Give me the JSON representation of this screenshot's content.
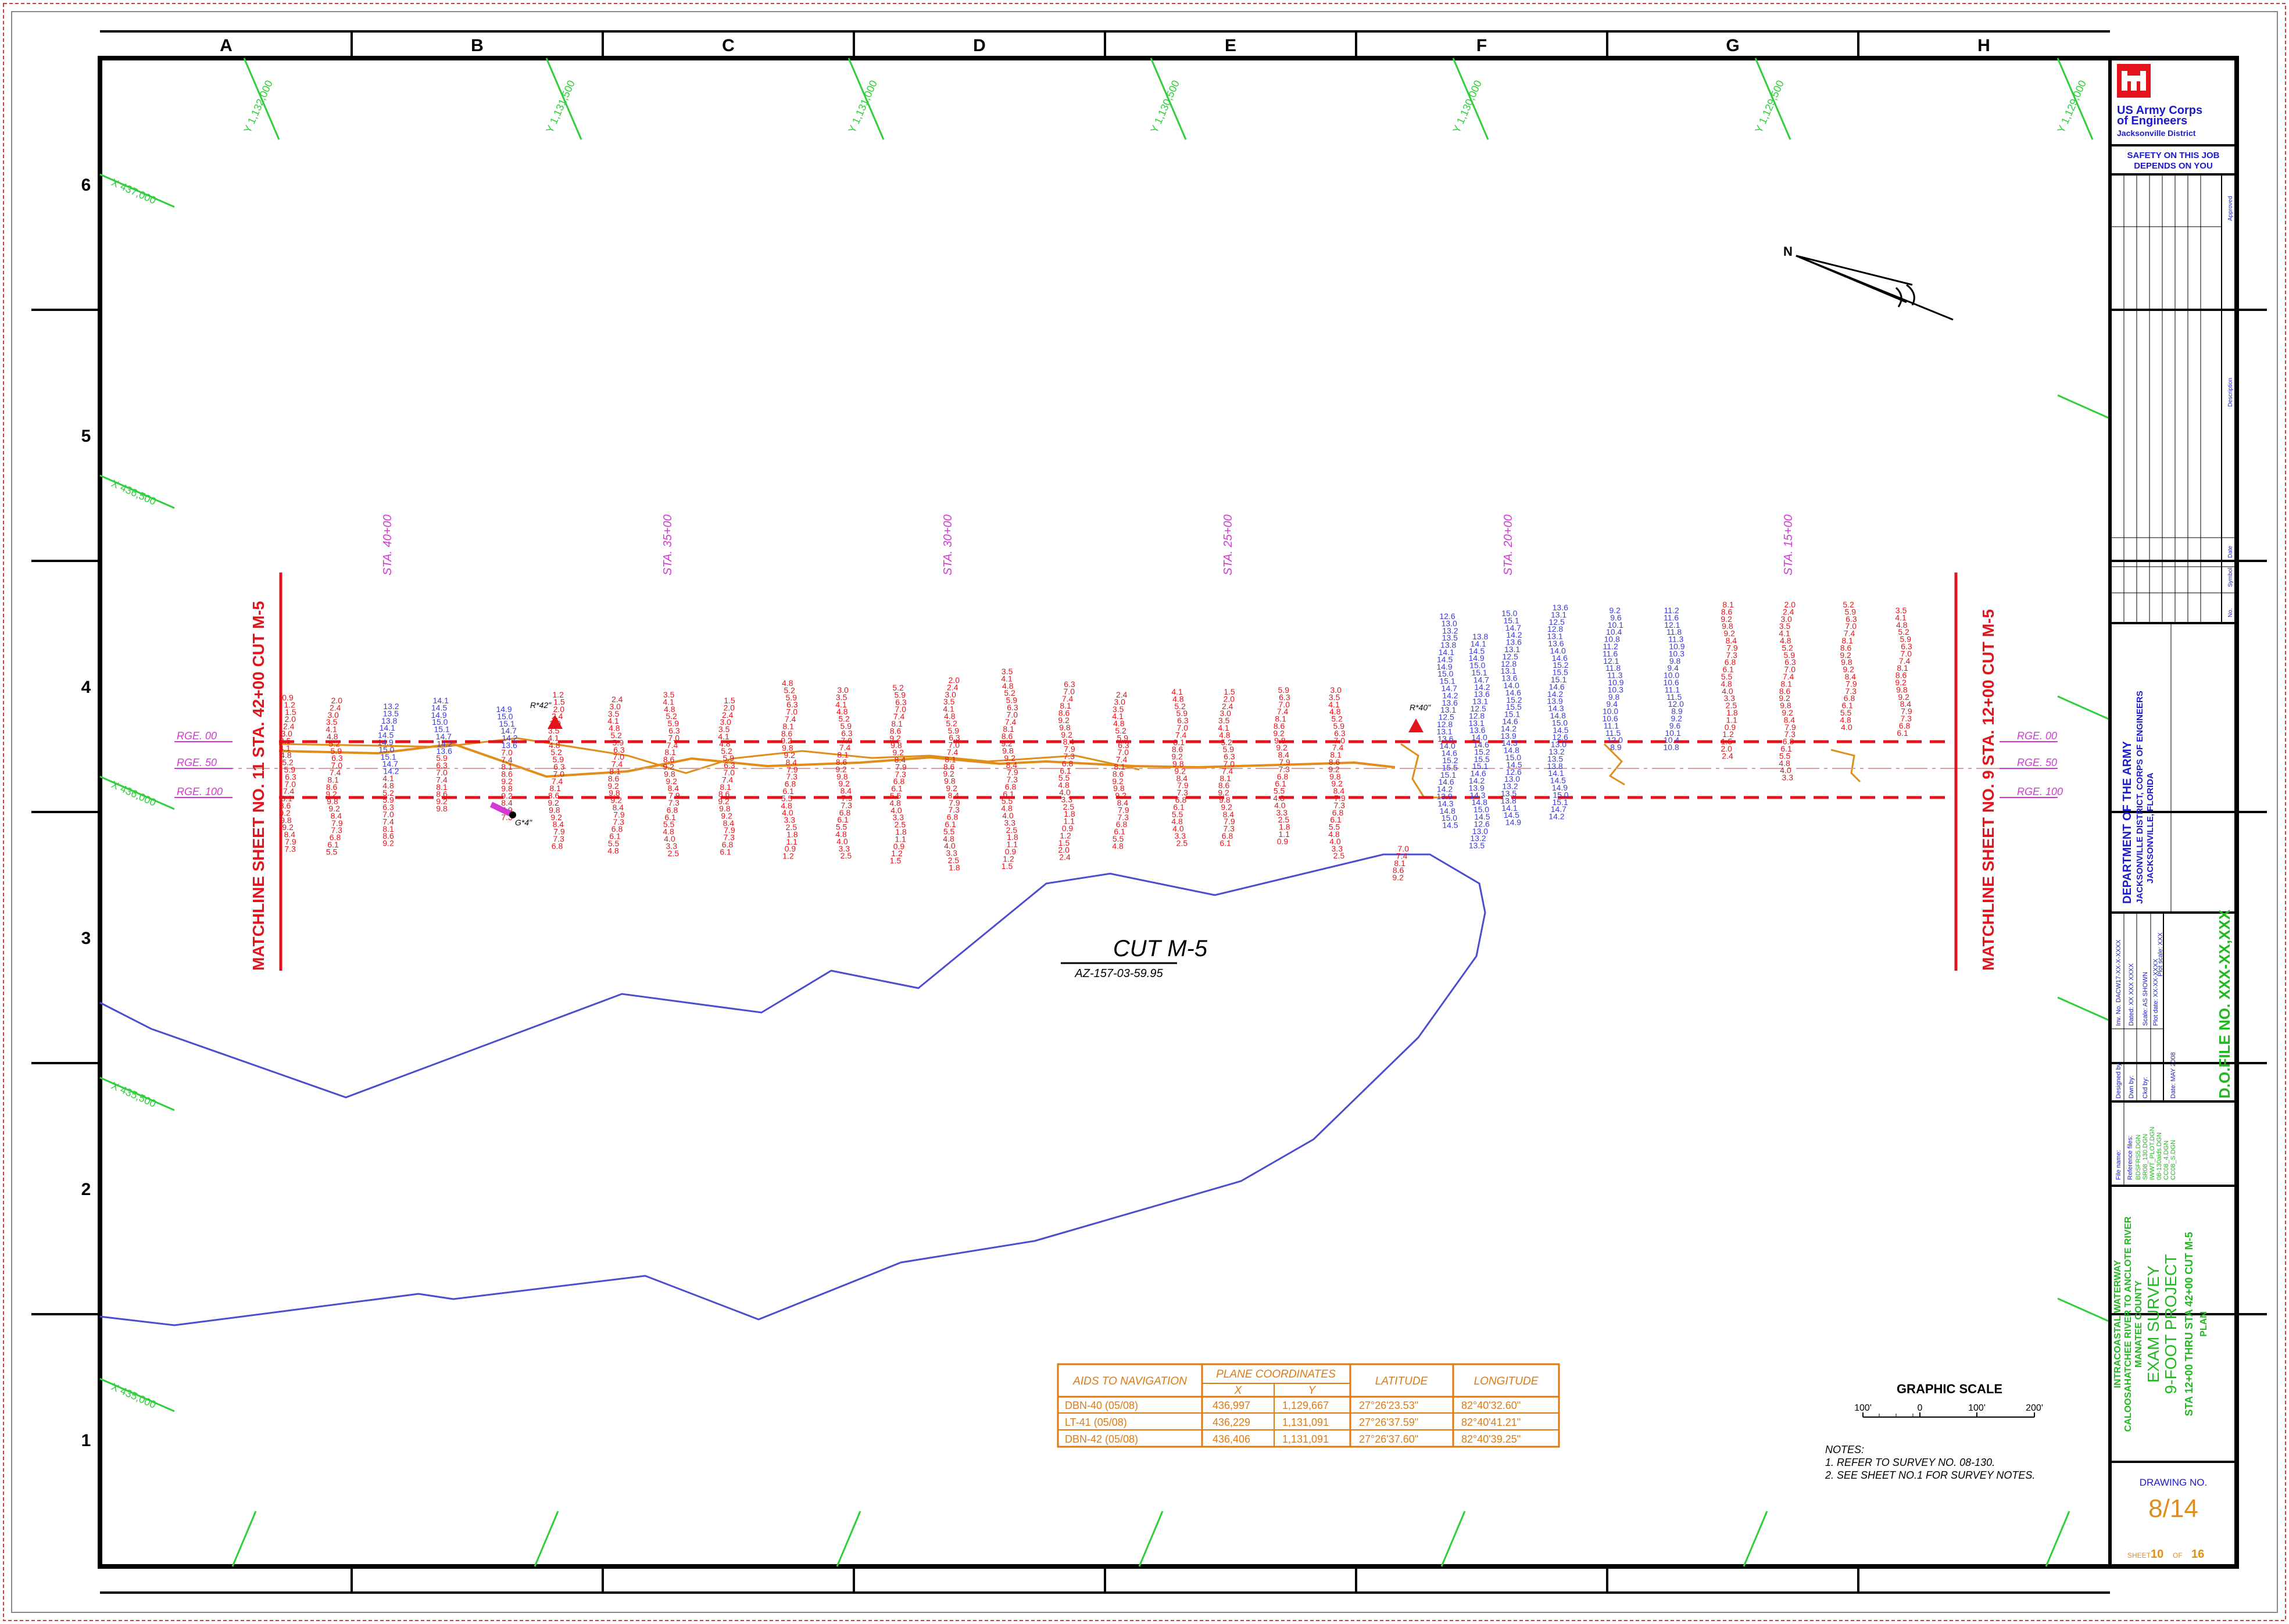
{
  "grid": {
    "columns": [
      "A",
      "B",
      "C",
      "D",
      "E",
      "F",
      "G",
      "H"
    ],
    "rows": [
      "6",
      "5",
      "4",
      "3",
      "2",
      "1"
    ]
  },
  "coords": {
    "y_labels": [
      "Y 1,132,000",
      "Y 1,131,500",
      "Y 1,131,000",
      "Y 1,130,500",
      "Y 1,130,000",
      "Y 1,129,500",
      "Y 1,129,000"
    ],
    "x_labels": [
      "X 437,000",
      "X 436,500",
      "X 436,000",
      "X 435,500",
      "X 435,000"
    ]
  },
  "stations": [
    "STA. 40+00",
    "STA. 35+00",
    "STA. 30+00",
    "STA. 25+00",
    "STA. 20+00",
    "STA. 15+00"
  ],
  "ranges": {
    "left": [
      "RGE. 00",
      "RGE. 50",
      "RGE. 100"
    ],
    "right": [
      "RGE. 00",
      "RGE. 50",
      "RGE. 100"
    ]
  },
  "matchlines": {
    "left": "MATCHLINE SHEET NO. 11 STA. 42+00 CUT M-5",
    "right": "MATCHLINE SHEET NO. 9 STA. 12+00 CUT M-5"
  },
  "annotations": {
    "cut_title": "CUT M-5",
    "cut_subtitle": "AZ-157-03-59.95",
    "marker1": "R*42\"",
    "marker2": "R*40\"",
    "marker3": "G*4\""
  },
  "soundings": {
    "red_a": [
      "0.9",
      "1.2",
      "1.5",
      "2.0",
      "2.4",
      "3.0",
      "3.5",
      "4.1",
      "4.8",
      "5.2",
      "5.9",
      "6.3",
      "7.0",
      "7.4",
      "8.1",
      "8.6",
      "9.2",
      "9.8",
      "9.2",
      "8.4",
      "7.9",
      "7.3",
      "6.8",
      "6.1",
      "5.5",
      "4.8",
      "4.0",
      "3.3",
      "2.5",
      "1.8",
      "1.1"
    ],
    "blue_a": [
      "12.6",
      "13.0",
      "13.2",
      "13.5",
      "13.8",
      "14.1",
      "14.5",
      "14.9",
      "15.0",
      "15.1",
      "14.7",
      "14.2",
      "13.6",
      "13.1",
      "12.5",
      "12.8",
      "13.1",
      "13.6",
      "14.0",
      "14.6",
      "15.2",
      "15.5",
      "15.1",
      "14.6",
      "14.2",
      "13.9",
      "14.3",
      "14.8",
      "15.0",
      "14.5"
    ],
    "blue_b": [
      "8.9",
      "9.2",
      "9.6",
      "10.1",
      "10.4",
      "10.8",
      "11.2",
      "11.6",
      "12.1",
      "11.8",
      "11.3",
      "10.9",
      "10.3",
      "9.8",
      "9.4",
      "10.0",
      "10.6",
      "11.1",
      "11.5",
      "12.0"
    ]
  },
  "aids_table": {
    "headers": [
      "AIDS TO NAVIGATION",
      "PLANE COORDINATES",
      "LATITUDE",
      "LONGITUDE"
    ],
    "subheaders": [
      "X",
      "Y"
    ],
    "rows": [
      [
        "DBN-40 (05/08)",
        "436,997",
        "1,129,667",
        "27°26'23.53\"",
        "82°40'32.60\""
      ],
      [
        "LT-41 (05/08)",
        "436,229",
        "1,131,091",
        "27°26'37.59\"",
        "82°40'41.21\""
      ],
      [
        "DBN-42 (05/08)",
        "436,406",
        "1,131,091",
        "27°26'37.60\"",
        "82°40'39.25\""
      ]
    ]
  },
  "scale": {
    "title": "GRAPHIC SCALE",
    "ticks": [
      "100'",
      "0",
      "100'",
      "200'"
    ]
  },
  "notes": {
    "title": "NOTES:",
    "items": [
      "1. REFER TO SURVEY NO. 08-130.",
      "2. SEE SHEET NO.1 FOR SURVEY NOTES."
    ]
  },
  "title_block": {
    "agency_line1": "US Army Corps",
    "agency_line2": "of Engineers",
    "agency_line3": "Jacksonville District",
    "safety_line1": "SAFETY ON THIS JOB",
    "safety_line2": "DEPENDS ON YOU",
    "rev_approved": "Approved",
    "rev_description": "Description",
    "rev_date": "Date",
    "rev_symbol": "Symbol",
    "rev_no": "No.",
    "dept_line1": "DEPARTMENT OF THE ARMY",
    "dept_line2": "JACKSONVILLE DISTRICT, CORPS OF ENGINEERS",
    "dept_line3": "JACKSONVILLE, FLORIDA",
    "inv_no": "Inv. No. DACW17-XX-X-XXXX",
    "dated": "Dated: XX XXX XXXX",
    "scale_field": "Scale: AS SHOWN",
    "plot_date": "Plot date: XX-XX-XXXX",
    "plot_scale": "Plot scale: XXX",
    "designed_by": "Designed by:",
    "drawn_by": "Dwn by:",
    "ckd_by": "Ckd by:",
    "date_field": "Date: MAY 2008",
    "dofile": "D.O.FILE NO. XXX-XX,XXX",
    "file_name": "File name:",
    "ref_files_title": "Reference files:",
    "ref_files": [
      "BDSFRS5.DGN",
      "SR08_130.DGN",
      "IWWT_PLOT.DGN",
      "08-130aids.DGN",
      "CC08_4.DGN",
      "CC08_S.DGN"
    ],
    "project_line1": "INTRACOASTAL WATERWAY",
    "project_line2": "CALOOSAHATCHEE RIVER TO ANCLOTE RIVER",
    "project_line3": "MANATEE COUNTY",
    "project_line4": "EXAM SURVEY",
    "project_line5": "9-FOOT PROJECT",
    "project_line6": "STA 12+00 THRU STA 42+00 CUT M-5",
    "project_line7": "PLAN",
    "drawing_no_label": "DRAWING NO.",
    "drawing_no": "8/14",
    "sheet_label": "SHEET",
    "sheet_no": "10",
    "sheet_of": "OF",
    "sheet_total": "16"
  },
  "colors": {
    "border": "#000000",
    "coord_green": "#2fcf3a",
    "station_magenta": "#d23ad2",
    "matchline_red": "#e4131b",
    "sounding_blue": "#3a3ad6",
    "shoreline_blue": "#4c4cd0",
    "channel_orange": "#e08d1a",
    "table_orange": "#e07a10",
    "title_green": "#1fb81f"
  }
}
